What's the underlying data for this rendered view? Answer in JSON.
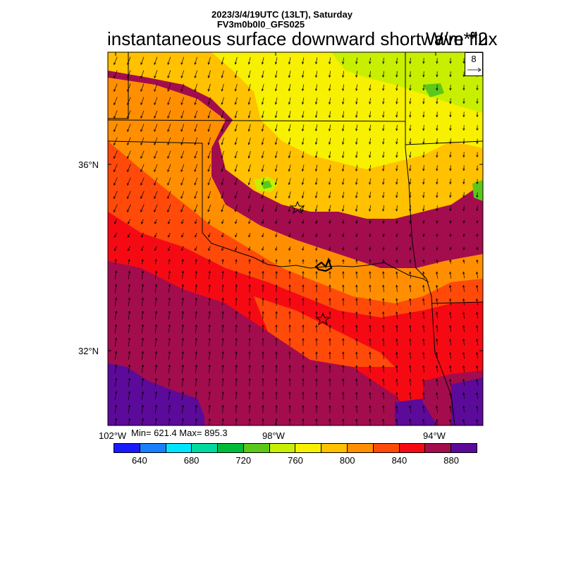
{
  "header": {
    "line1": "2023/3/4/19UTC (13LT), Saturday",
    "line2": "FV3m0b0l0_GFS025",
    "title": "instantaneous surface downward shortwave flux",
    "units": "W/m**2"
  },
  "reference_vector": {
    "label": "8"
  },
  "axes": {
    "lat_labels": [
      "36°N",
      "32°N"
    ],
    "lon_labels": [
      "102°W",
      "98°W",
      "94°W"
    ]
  },
  "stats": {
    "text": "Min= 621.4 Max= 895.3"
  },
  "colorbar": {
    "colors": [
      "#1a1aff",
      "#1a7fff",
      "#00e5ff",
      "#00d9a0",
      "#00bb3a",
      "#5cc81a",
      "#c8ef00",
      "#f7f000",
      "#ffc100",
      "#ff8f00",
      "#ff4a0a",
      "#f50a14",
      "#a30d4d",
      "#5c0a99"
    ],
    "labels": [
      "640",
      "680",
      "720",
      "760",
      "800",
      "840",
      "880"
    ]
  },
  "field_colors": {
    "purple": "#5c0a99",
    "maroon": "#a30d4d",
    "red": "#f50a14",
    "redorange": "#ff4a0a",
    "orange": "#ff8f00",
    "amber": "#ffc100",
    "yellow": "#f7f000",
    "lime": "#c8ef00",
    "green": "#5cc81a"
  },
  "markers": [
    "star",
    "star"
  ]
}
